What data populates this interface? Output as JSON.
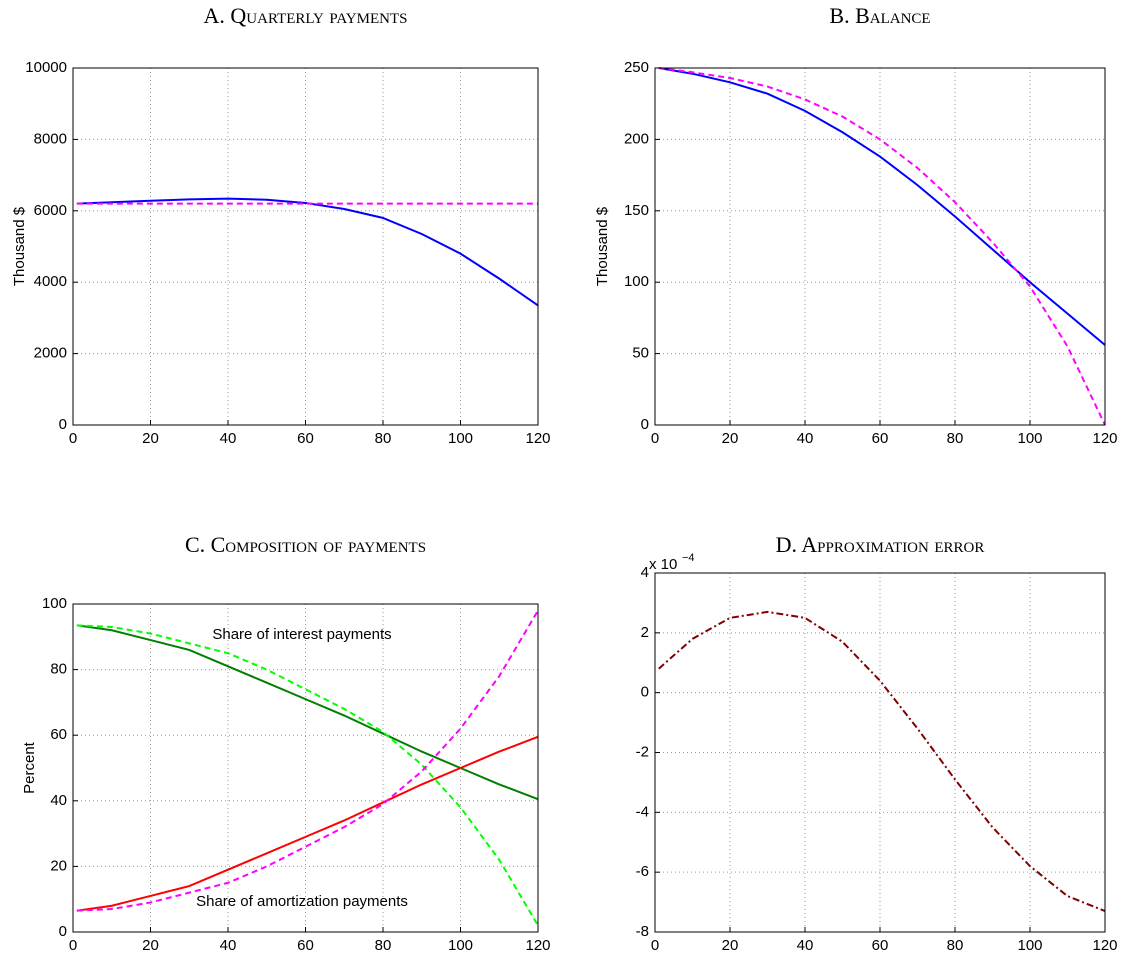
{
  "chart_data": [
    {
      "type": "line",
      "title": "A. Quarterly payments",
      "ylabel": "Thousand $",
      "x": [
        1,
        10,
        20,
        30,
        40,
        50,
        60,
        70,
        80,
        90,
        100,
        110,
        120
      ],
      "series": [
        {
          "color": "#0000ff",
          "linestyle": "solid",
          "values": [
            6200,
            6240,
            6280,
            6320,
            6340,
            6310,
            6220,
            6050,
            5800,
            5350,
            4800,
            4100,
            3350
          ]
        },
        {
          "color": "#ff00ff",
          "linestyle": "dashed",
          "values": [
            6200,
            6200,
            6200,
            6200,
            6200,
            6200,
            6200,
            6200,
            6200,
            6200,
            6200,
            6200,
            6200
          ]
        }
      ],
      "xlim": [
        0,
        120
      ],
      "xticks": [
        0,
        20,
        40,
        60,
        80,
        100,
        120
      ],
      "ylim": [
        0,
        10000
      ],
      "yticks": [
        0,
        2000,
        4000,
        6000,
        8000,
        10000
      ],
      "grid": true
    },
    {
      "type": "line",
      "title": "B. Balance",
      "ylabel": "Thousand $",
      "x": [
        1,
        10,
        20,
        30,
        40,
        50,
        60,
        70,
        80,
        90,
        100,
        110,
        120
      ],
      "series": [
        {
          "color": "#0000ff",
          "linestyle": "solid",
          "values": [
            250,
            246,
            240,
            232,
            220,
            205,
            188,
            168,
            146,
            123,
            100,
            78,
            56
          ]
        },
        {
          "color": "#ff00ff",
          "linestyle": "dashed",
          "values": [
            250,
            247,
            243,
            237,
            228,
            216,
            200,
            180,
            156,
            128,
            97,
            55,
            0
          ]
        }
      ],
      "xlim": [
        0,
        120
      ],
      "xticks": [
        0,
        20,
        40,
        60,
        80,
        100,
        120
      ],
      "ylim": [
        0,
        250
      ],
      "yticks": [
        0,
        50,
        100,
        150,
        200,
        250
      ],
      "grid": true
    },
    {
      "type": "line",
      "title": "C. Composition of payments",
      "ylabel": "Percent",
      "x": [
        1,
        10,
        20,
        30,
        40,
        50,
        60,
        70,
        80,
        90,
        100,
        110,
        120
      ],
      "series": [
        {
          "color": "#007f00",
          "linestyle": "solid",
          "values": [
            93.5,
            92,
            89,
            86,
            81,
            76,
            71,
            66,
            60.5,
            55,
            50,
            45,
            40.5
          ]
        },
        {
          "color": "#00ff00",
          "linestyle": "dashed",
          "values": [
            93.5,
            93,
            91,
            88,
            85,
            80,
            74,
            68,
            61,
            51,
            38,
            22,
            2
          ]
        },
        {
          "color": "#ff0000",
          "linestyle": "solid",
          "values": [
            6.5,
            8,
            11,
            14,
            19,
            24,
            29,
            34,
            39.5,
            45,
            50,
            55,
            59.5
          ]
        },
        {
          "color": "#ff00ff",
          "linestyle": "dashed",
          "values": [
            6.5,
            7,
            9,
            12,
            15,
            20,
            26,
            32,
            39,
            49,
            62,
            78,
            98
          ]
        }
      ],
      "annotations": [
        {
          "text": "Share of interest payments",
          "color": "#007f00"
        },
        {
          "text": "Share of amortization payments",
          "color": "#ff0000"
        }
      ],
      "xlim": [
        0,
        120
      ],
      "xticks": [
        0,
        20,
        40,
        60,
        80,
        100,
        120
      ],
      "ylim": [
        0,
        100
      ],
      "yticks": [
        0,
        20,
        40,
        60,
        80,
        100
      ],
      "grid": true
    },
    {
      "type": "line",
      "title": "D. Approximation error",
      "y_multiplier": {
        "base": "x 10",
        "exponent": "−4"
      },
      "x": [
        1,
        10,
        20,
        30,
        40,
        50,
        60,
        70,
        80,
        90,
        100,
        110,
        120
      ],
      "series": [
        {
          "color": "#800000",
          "linestyle": "dashdot",
          "values": [
            0.8,
            1.8,
            2.5,
            2.7,
            2.5,
            1.7,
            0.4,
            -1.2,
            -2.9,
            -4.5,
            -5.8,
            -6.8,
            -7.3
          ]
        }
      ],
      "xlim": [
        0,
        120
      ],
      "xticks": [
        0,
        20,
        40,
        60,
        80,
        100,
        120
      ],
      "ylim": [
        -8,
        4
      ],
      "yticks": [
        -8,
        -6,
        -4,
        -2,
        0,
        2,
        4
      ],
      "grid": true
    }
  ]
}
